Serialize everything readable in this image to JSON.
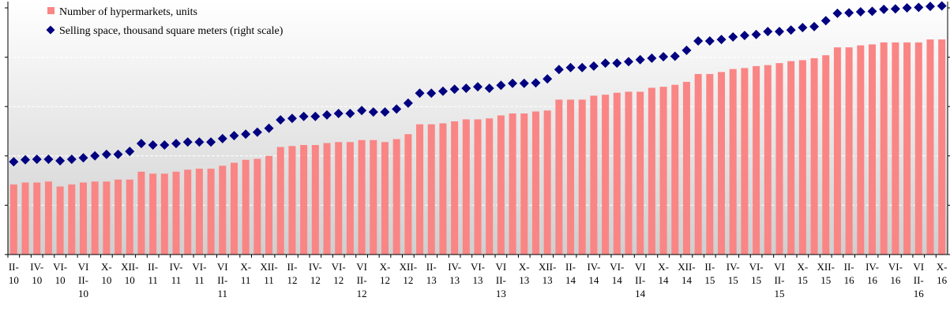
{
  "chart_data": {
    "type": "bar_line",
    "categories": [
      "II-10",
      null,
      "IV-10",
      null,
      "VI-10",
      null,
      "VIII-10",
      null,
      "X-10",
      null,
      "XII-10",
      null,
      "II-11",
      null,
      "IV-11",
      null,
      "VI-11",
      null,
      "VIII-11",
      null,
      "X-11",
      null,
      "XII-11",
      null,
      "II-12",
      null,
      "IV-12",
      null,
      "VI-12",
      null,
      "VIII-12",
      null,
      "X-12",
      null,
      "XII-12",
      null,
      "II-13",
      null,
      "IV-13",
      null,
      "VI-13",
      null,
      "VIII-13",
      null,
      "X-13",
      null,
      "XII-13",
      null,
      "II-14",
      null,
      "IV-14",
      null,
      "VI-14",
      null,
      "VIII-14",
      null,
      "X-14",
      null,
      "XII-14",
      null,
      "II-15",
      null,
      "IV-15",
      null,
      "VI-15",
      null,
      "VIII-15",
      null,
      "X-15",
      null,
      "XII-15",
      null,
      "II-16",
      null,
      "IV-16",
      null,
      "VI-16",
      null,
      "VIII-16",
      null,
      "X-16"
    ],
    "series": [
      {
        "name": "Number of hypermarkets, units",
        "color": "#fa8585",
        "kind": "bar",
        "axis": "y",
        "values": [
          71,
          73,
          73,
          74,
          69,
          71,
          73,
          74,
          74,
          76,
          76,
          84,
          82,
          82,
          84,
          86,
          87,
          87,
          90,
          93,
          96,
          97,
          100,
          109,
          110,
          111,
          111,
          113,
          114,
          114,
          116,
          116,
          114,
          117,
          122,
          132,
          132,
          133,
          135,
          137,
          137,
          138,
          141,
          143,
          143,
          145,
          146,
          157,
          157,
          157,
          161,
          162,
          164,
          165,
          165,
          169,
          170,
          172,
          175,
          183,
          183,
          185,
          188,
          189,
          191,
          192,
          194,
          196,
          197,
          199,
          202,
          210,
          210,
          212,
          213,
          215,
          215,
          215,
          215,
          218,
          218
        ]
      },
      {
        "name": "Selling space, thousand square meters (right scale)",
        "color": "#000080",
        "kind": "marker",
        "axis": "y2",
        "values": [
          1880,
          1920,
          1930,
          1930,
          1900,
          1930,
          1960,
          2000,
          2030,
          2030,
          2090,
          2250,
          2220,
          2220,
          2250,
          2280,
          2280,
          2280,
          2350,
          2410,
          2440,
          2480,
          2560,
          2730,
          2760,
          2800,
          2800,
          2830,
          2860,
          2860,
          2920,
          2890,
          2890,
          2950,
          3070,
          3270,
          3270,
          3310,
          3350,
          3370,
          3400,
          3370,
          3430,
          3470,
          3470,
          3480,
          3560,
          3750,
          3790,
          3790,
          3820,
          3880,
          3880,
          3910,
          3950,
          3980,
          4010,
          4020,
          4140,
          4330,
          4330,
          4360,
          4410,
          4440,
          4460,
          4520,
          4520,
          4550,
          4600,
          4620,
          4740,
          4890,
          4900,
          4920,
          4930,
          4970,
          4980,
          5000,
          5010,
          5030,
          5040
        ]
      }
    ],
    "ylim": [
      0,
      250
    ],
    "yticks": [
      0,
      50,
      100,
      150,
      200,
      250
    ],
    "y2lim": [
      0,
      5000
    ],
    "y2ticks": [
      0,
      1000,
      2000,
      3000,
      4000,
      5000
    ],
    "grid": true,
    "legend": "top-left"
  }
}
